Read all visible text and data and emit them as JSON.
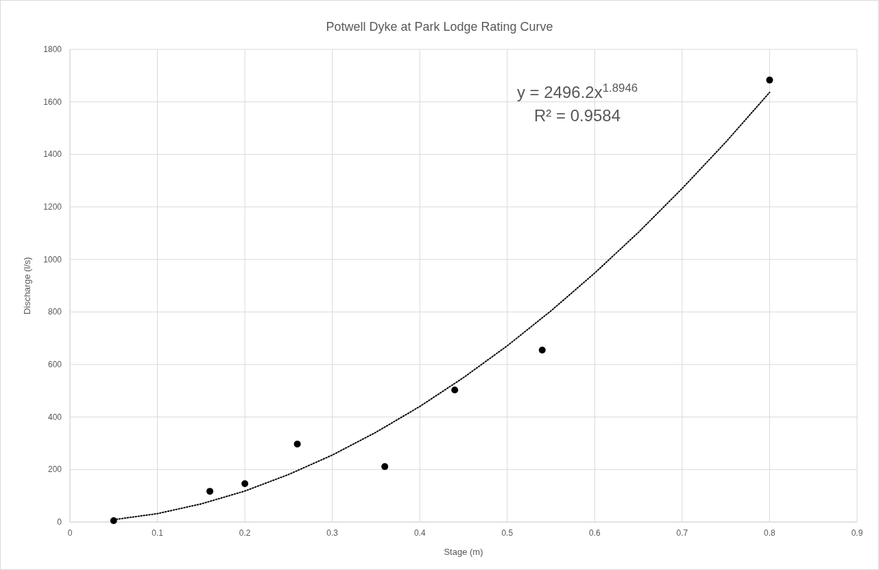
{
  "chart_data": {
    "type": "scatter",
    "title": "Potwell Dyke at Park Lodge Rating Curve",
    "xlabel": "Stage (m)",
    "ylabel": "Discharge (l/s)",
    "xlim": [
      0,
      0.9
    ],
    "xticks": [
      0,
      0.1,
      0.2,
      0.3,
      0.4,
      0.5,
      0.6,
      0.7,
      0.8,
      0.9
    ],
    "ylim": [
      0,
      1800
    ],
    "yticks": [
      0,
      200,
      400,
      600,
      800,
      1000,
      1200,
      1400,
      1600,
      1800
    ],
    "grid": true,
    "marker": "circle",
    "annotations": [
      "y = 2496.2x$^{1.8946}$",
      "R² = 0.9584"
    ],
    "series": [
      {
        "type": "scatter",
        "color": "#000000",
        "x": [
          0.05,
          0.16,
          0.2,
          0.26,
          0.36,
          0.44,
          0.54,
          0.8
        ],
        "values": [
          5,
          117,
          146,
          297,
          211,
          503,
          655,
          1683
        ]
      },
      {
        "type": "line",
        "color": "#000000",
        "marker": "none",
        "line_style": "dotted",
        "x": [
          0.05,
          0.1,
          0.15,
          0.2,
          0.25,
          0.3,
          0.35,
          0.4,
          0.45,
          0.5,
          0.55,
          0.6,
          0.65,
          0.7,
          0.75,
          0.8
        ],
        "values": [
          9,
          32,
          69,
          118,
          181,
          255,
          342,
          440,
          550,
          671,
          804,
          948,
          1103,
          1270,
          1447,
          1636
        ]
      }
    ]
  }
}
